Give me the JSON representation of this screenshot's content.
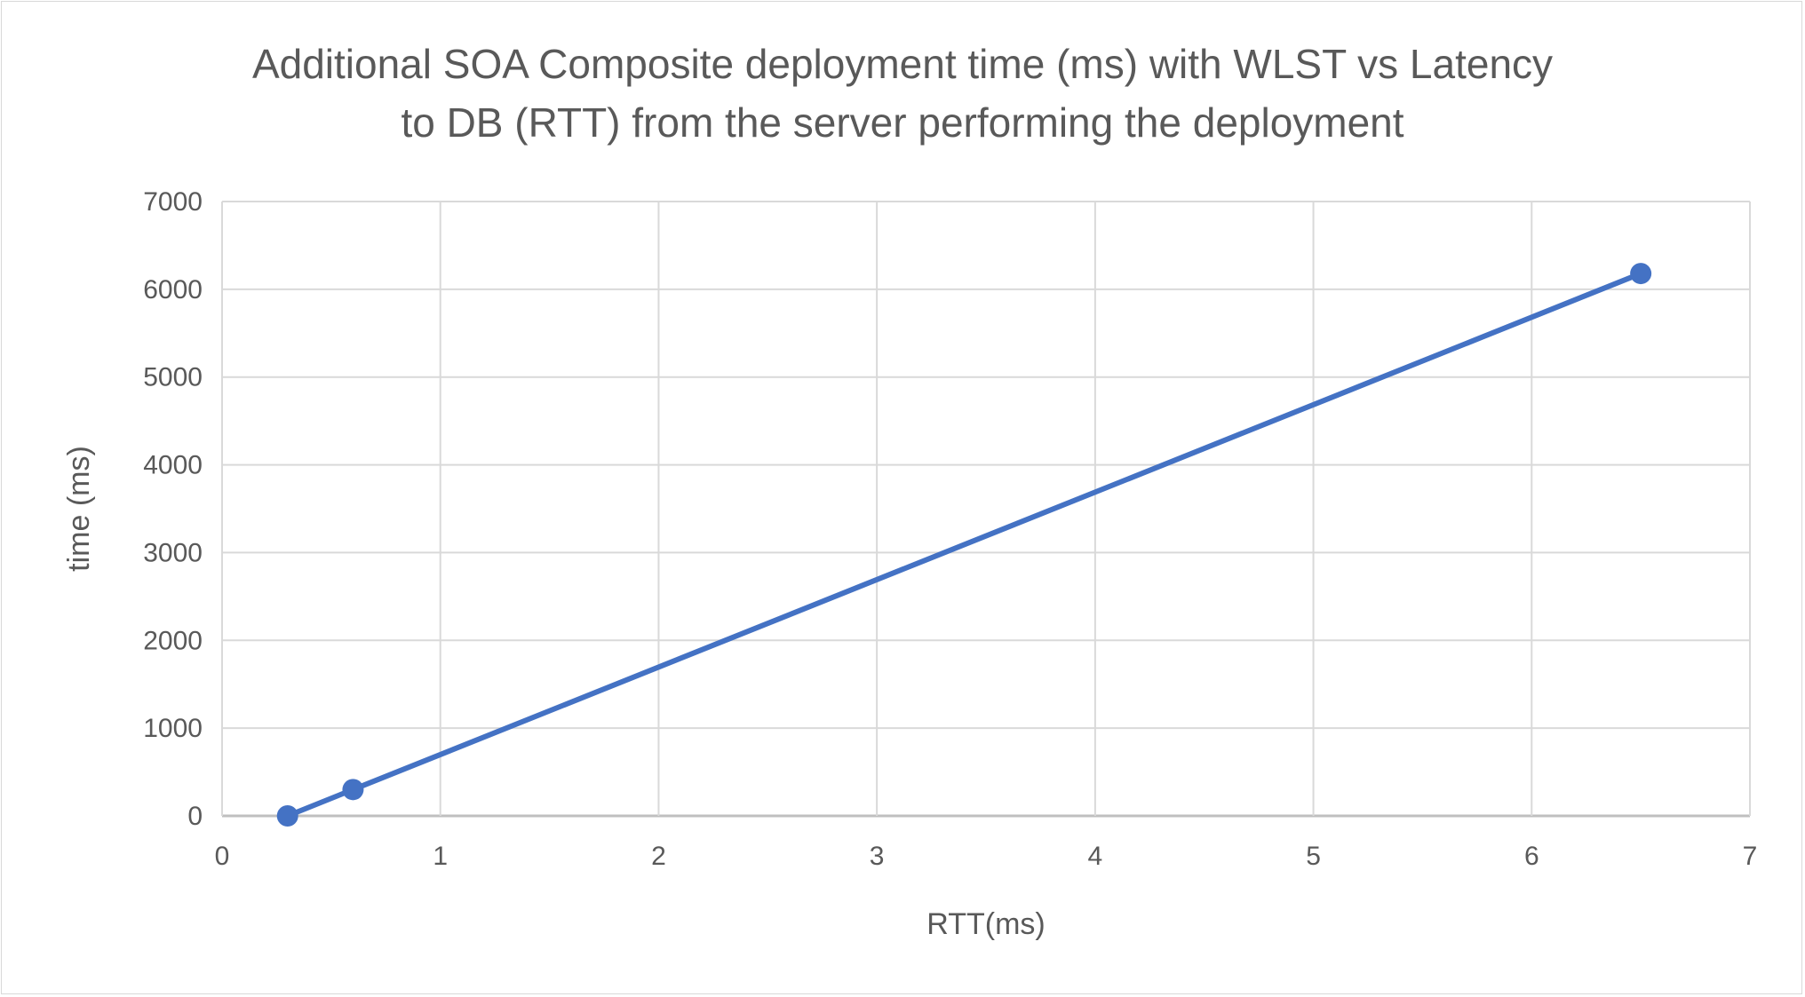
{
  "chart_data": {
    "type": "line",
    "title_lines": [
      "Additional SOA Composite deployment time (ms) with WLST vs Latency",
      "to DB (RTT)  from the server performing the deployment"
    ],
    "xlabel": "RTT(ms)",
    "ylabel": "time (ms)",
    "xlim": [
      0,
      7
    ],
    "ylim": [
      0,
      7000
    ],
    "xticks": [
      "0",
      "1",
      "2",
      "3",
      "4",
      "5",
      "6",
      "7"
    ],
    "yticks": [
      "0",
      "1000",
      "2000",
      "3000",
      "4000",
      "5000",
      "6000",
      "7000"
    ],
    "grid": true,
    "legend": "none",
    "series": [
      {
        "color": "#4472c4",
        "x": [
          0.3,
          0.6,
          6.5
        ],
        "y": [
          0,
          300,
          6180
        ]
      }
    ]
  }
}
